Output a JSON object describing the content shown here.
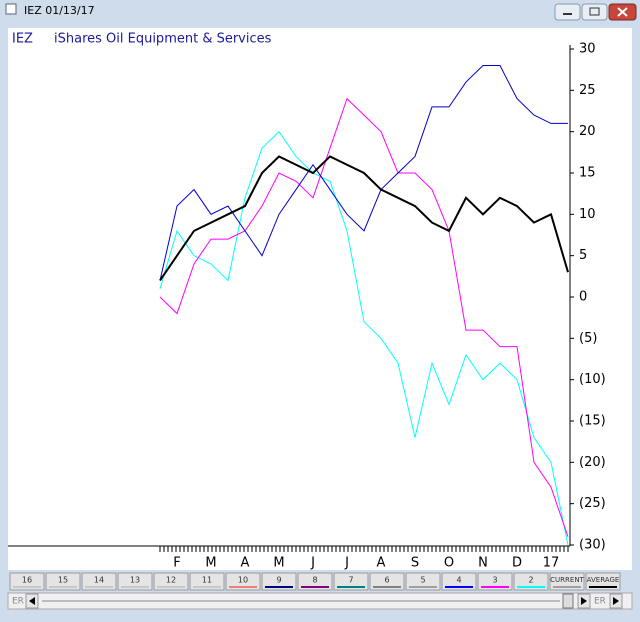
{
  "window_title": "IEZ 01/13/17",
  "chart_data": {
    "type": "line",
    "symbol": "IEZ",
    "title": "iShares Oil Equipment & Services",
    "categories": [
      null,
      "F",
      null,
      "M",
      null,
      "A",
      null,
      "M",
      null,
      "J",
      null,
      "J",
      null,
      "A",
      null,
      "S",
      null,
      "O",
      null,
      "N",
      null,
      "D",
      null,
      "17",
      null
    ],
    "series": [
      {
        "color": "#00ffff",
        "width": 1,
        "values": [
          1,
          8,
          5,
          4,
          2,
          12,
          18,
          20,
          17,
          15,
          14,
          8,
          -3,
          -5,
          -8,
          -17,
          -8,
          -13,
          -7,
          -10,
          -8,
          -10,
          -17,
          -20,
          -30
        ]
      },
      {
        "color": "#ff00ff",
        "width": 1,
        "values": [
          0,
          -2,
          4,
          7,
          7,
          8,
          11,
          15,
          14,
          12,
          18,
          24,
          22,
          20,
          15,
          15,
          13,
          8,
          -4,
          -4,
          -6,
          -6,
          -20,
          -23,
          -29
        ]
      },
      {
        "color": "#0000cc",
        "width": 1,
        "values": [
          2,
          11,
          13,
          10,
          11,
          8,
          5,
          10,
          13,
          16,
          13,
          10,
          8,
          13,
          15,
          17,
          23,
          23,
          26,
          28,
          28,
          24,
          22,
          21,
          21
        ]
      },
      {
        "color": "#000000",
        "width": 2,
        "values": [
          2,
          5,
          8,
          9,
          10,
          11,
          15,
          17,
          16,
          15,
          17,
          16,
          15,
          13,
          12,
          11,
          9,
          8,
          12,
          10,
          12,
          11,
          9,
          10,
          3
        ]
      }
    ],
    "ylim": [
      -30,
      30
    ],
    "yticks": [
      30,
      25,
      20,
      15,
      10,
      5,
      0,
      {
        "value": -5,
        "label": "(5)"
      },
      {
        "value": -10,
        "label": "(10)"
      },
      {
        "value": -15,
        "label": "(15)"
      },
      {
        "value": -20,
        "label": "(20)"
      },
      {
        "value": -25,
        "label": "(25)"
      },
      {
        "value": -30,
        "label": "(30)"
      }
    ]
  },
  "buttons": [
    {
      "label": "16",
      "color": "#c8c8c8"
    },
    {
      "label": "15",
      "color": "#c8c8c8"
    },
    {
      "label": "14",
      "color": "#c8c8c8"
    },
    {
      "label": "13",
      "color": "#c8c8c8"
    },
    {
      "label": "12",
      "color": "#c8c8c8"
    },
    {
      "label": "11",
      "color": "#c8c8c8"
    },
    {
      "label": "10",
      "color": "#f08080"
    },
    {
      "label": "9",
      "color": "#000080"
    },
    {
      "label": "8",
      "color": "#800080"
    },
    {
      "label": "7",
      "color": "#008080"
    },
    {
      "label": "6",
      "color": "#808080"
    },
    {
      "label": "5",
      "color": "#a0a0a0"
    },
    {
      "label": "4",
      "color": "#0000ff"
    },
    {
      "label": "3",
      "color": "#ff00ff"
    },
    {
      "label": "2",
      "color": "#00ffff"
    },
    {
      "label": "CURRENT",
      "color": "#a0a0a0"
    },
    {
      "label": "AVERAGE",
      "color": "#000000"
    }
  ],
  "scroll_left_label": "ER",
  "scroll_right_label": "ER"
}
